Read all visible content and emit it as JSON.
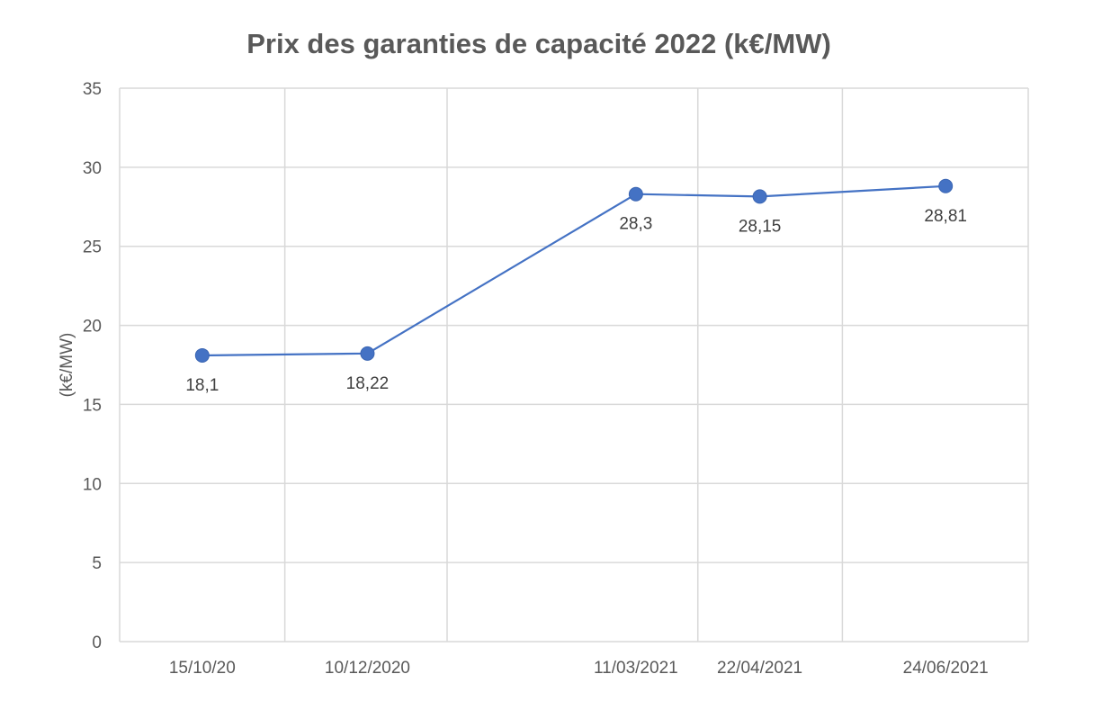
{
  "chart_data": {
    "type": "line",
    "title": "Prix des garanties de capacité 2022 (k€/MW)",
    "xlabel": "",
    "ylabel": "(k€/MW)",
    "ylim": [
      0,
      35
    ],
    "yticks": [
      "0",
      "5",
      "10",
      "15",
      "20",
      "25",
      "30",
      "35"
    ],
    "x_axis_type": "date",
    "x_gridline_dates": [
      "2020-11-12",
      "2021-01-06",
      "2021-04-01",
      "2021-05-20"
    ],
    "grid": true,
    "legend": "none",
    "series_color": "#4472c4",
    "points": [
      {
        "date": "2020-10-15",
        "tick_label": "15/10/20",
        "value": 18.1,
        "label": "18,1",
        "label_pos": "below"
      },
      {
        "date": "2020-12-10",
        "tick_label": "10/12/2020",
        "value": 18.22,
        "label": "18,22",
        "label_pos": "below"
      },
      {
        "date": "2021-03-11",
        "tick_label": "11/03/2021",
        "value": 28.3,
        "label": "28,3",
        "label_pos": "below"
      },
      {
        "date": "2021-04-22",
        "tick_label": "22/04/2021",
        "value": 28.15,
        "label": "28,15",
        "label_pos": "below"
      },
      {
        "date": "2021-06-24",
        "tick_label": "24/06/2021",
        "value": 28.81,
        "label": "28,81",
        "label_pos": "below"
      }
    ]
  }
}
